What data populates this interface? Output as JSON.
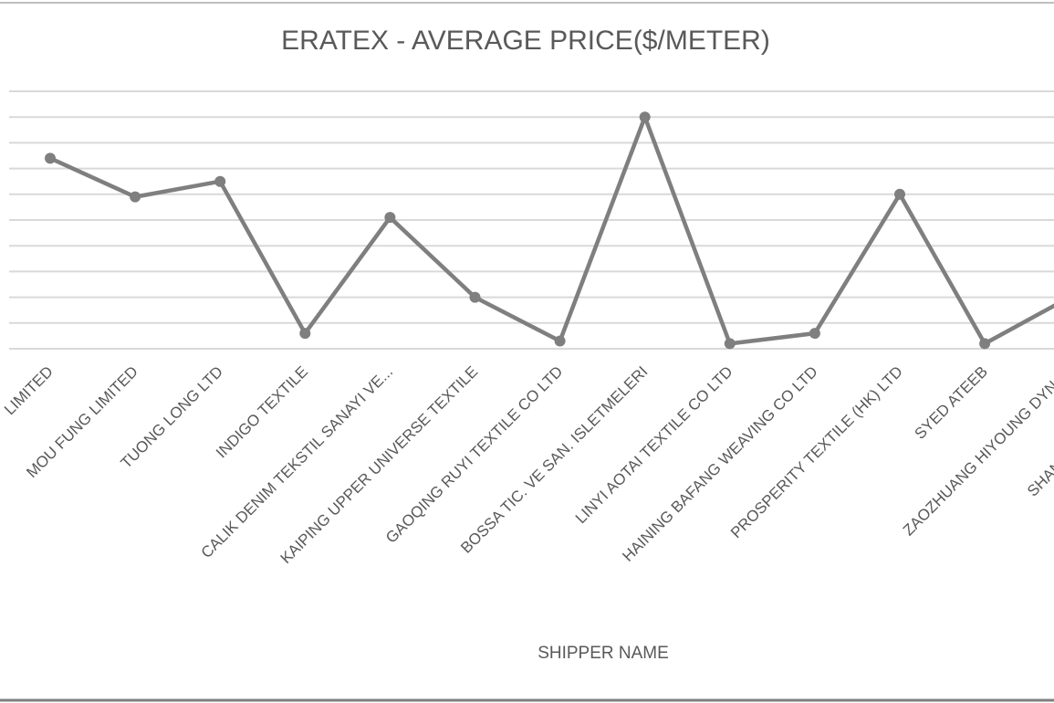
{
  "chart_data": {
    "type": "line",
    "title": "ERATEX - AVERAGE PRICE($/METER)",
    "x_label": "SHIPPER NAME",
    "categories": [
      "LIMITED",
      "MOU FUNG LIMITED",
      "TUONG LONG LTD",
      "INDIGO TEXTILE",
      "CALIK DENIM TEKSTIL SANAYI VE...",
      "KAIPING UPPER UNIVERSE TEXTILE",
      "GAOQING RUYI TEXTILE CO LTD",
      "BOSSA TIC. VE SAN. ISLETMELERI",
      "LINYI AOTAI TEXTILE CO LTD",
      "HAINING BAFANG WEAVING CO LTD",
      "PROSPERITY TEXTILE (HK) LTD",
      "SYED ATEEB",
      "ZAOZHUANG HIYOUNG DYNAS",
      "SHANGHAI FREEDOM T"
    ],
    "values": [
      7.4,
      5.9,
      6.5,
      0.6,
      5.1,
      2.0,
      0.3,
      9.0,
      0.2,
      0.6,
      6.0,
      0.2,
      2.0,
      null
    ],
    "color": "#7f7f7f",
    "ylim": [
      0,
      10
    ],
    "yticks": [
      0,
      1,
      2,
      3,
      4,
      5,
      6,
      7,
      8,
      9,
      10
    ],
    "grid": true
  }
}
